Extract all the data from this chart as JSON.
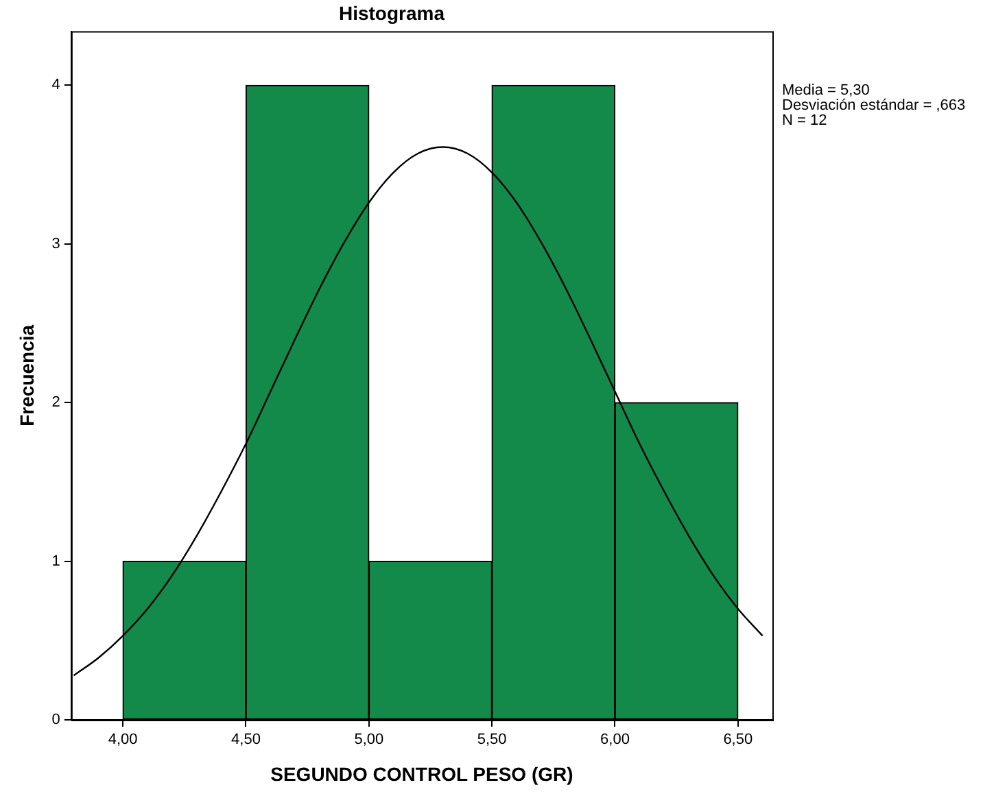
{
  "chart_data": {
    "type": "histogram",
    "title": "Histograma",
    "xlabel": "SEGUNDO CONTROL PESO (GR)",
    "ylabel": "Frecuencia",
    "annotations": [
      "Media = 5,30",
      "Desviación estándar = ,663",
      "N = 12"
    ],
    "series": [
      {
        "bins": [
          4.0,
          4.5,
          5.0,
          5.5,
          6.0,
          6.5
        ],
        "values": [
          1,
          4,
          1,
          4,
          2
        ],
        "color": "#138a4a"
      },
      {
        "type": "line",
        "color": "#000000",
        "x": [
          3.8,
          3.9,
          4.0,
          4.1,
          4.2,
          4.3,
          4.4,
          4.5,
          4.6,
          4.7,
          4.8,
          4.9,
          5.0,
          5.1,
          5.2,
          5.3,
          5.4,
          5.5,
          5.6,
          5.7,
          5.8,
          5.9,
          6.0,
          6.1,
          6.2,
          6.3,
          6.4,
          6.5,
          6.6
        ],
        "values": [
          0.28,
          0.39,
          0.53,
          0.7,
          0.91,
          1.16,
          1.44,
          1.74,
          2.07,
          2.4,
          2.72,
          3.01,
          3.26,
          3.45,
          3.57,
          3.61,
          3.57,
          3.45,
          3.26,
          3.01,
          2.72,
          2.4,
          2.07,
          1.74,
          1.44,
          1.16,
          0.91,
          0.7,
          0.53
        ]
      }
    ],
    "xlim": [
      3.79,
      6.64
    ],
    "xticks": [
      {
        "value": 4.0,
        "label": "4,00"
      },
      {
        "value": 4.5,
        "label": "4,50"
      },
      {
        "value": 5.0,
        "label": "5,00"
      },
      {
        "value": 5.5,
        "label": "5,50"
      },
      {
        "value": 6.0,
        "label": "6,00"
      },
      {
        "value": 6.5,
        "label": "6,50"
      }
    ],
    "ylim": [
      0,
      4.34
    ],
    "yticks": [
      0,
      1,
      2,
      3,
      4
    ],
    "grid": false,
    "legend": false,
    "marker": "none",
    "line_style": "solid"
  }
}
